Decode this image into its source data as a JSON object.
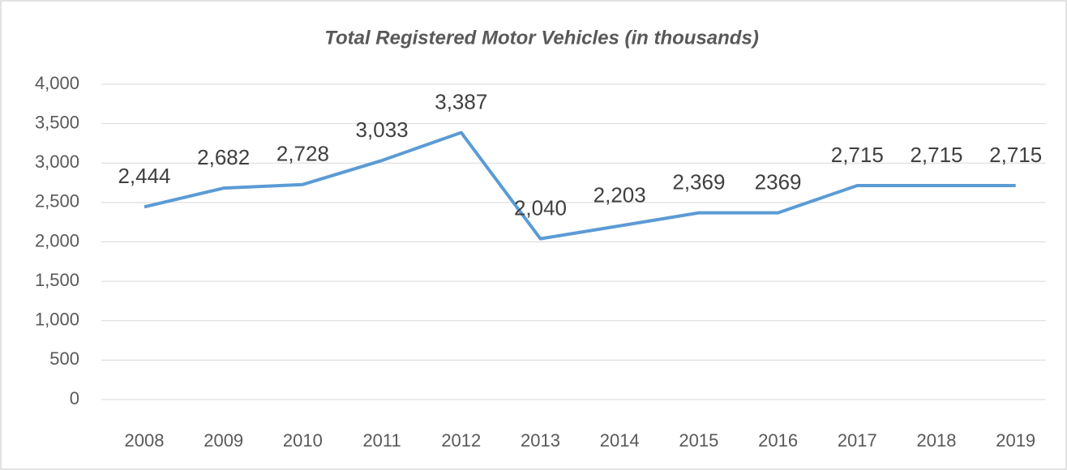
{
  "chart_data": {
    "type": "line",
    "title": "Total Registered Motor Vehicles (in thousands)",
    "categories": [
      "2008",
      "2009",
      "2010",
      "2011",
      "2012",
      "2013",
      "2014",
      "2015",
      "2016",
      "2017",
      "2018",
      "2019"
    ],
    "values": [
      2444,
      2682,
      2728,
      3033,
      3387,
      2040,
      2203,
      2369,
      2369,
      2715,
      2715,
      2715
    ],
    "value_labels": [
      "2,444",
      "2,682",
      "2,728",
      "3,033",
      "3,387",
      "2,040",
      "2,203",
      "2,369",
      "2369",
      "2,715",
      "2,715",
      "2,715"
    ],
    "color": "#5b9bd5",
    "ylim": [
      0,
      4000
    ],
    "yticks": [
      0,
      500,
      {
        "value": 1000,
        "label": "1,000"
      },
      {
        "value": 1500,
        "label": "1,500"
      },
      {
        "value": 2000,
        "label": "2,000"
      },
      {
        "value": 2500,
        "label": "2,500"
      },
      {
        "value": 3000,
        "label": "3,000"
      },
      {
        "value": 3500,
        "label": "3,500"
      },
      {
        "value": 4000,
        "label": "4,000"
      }
    ],
    "grid": true
  }
}
